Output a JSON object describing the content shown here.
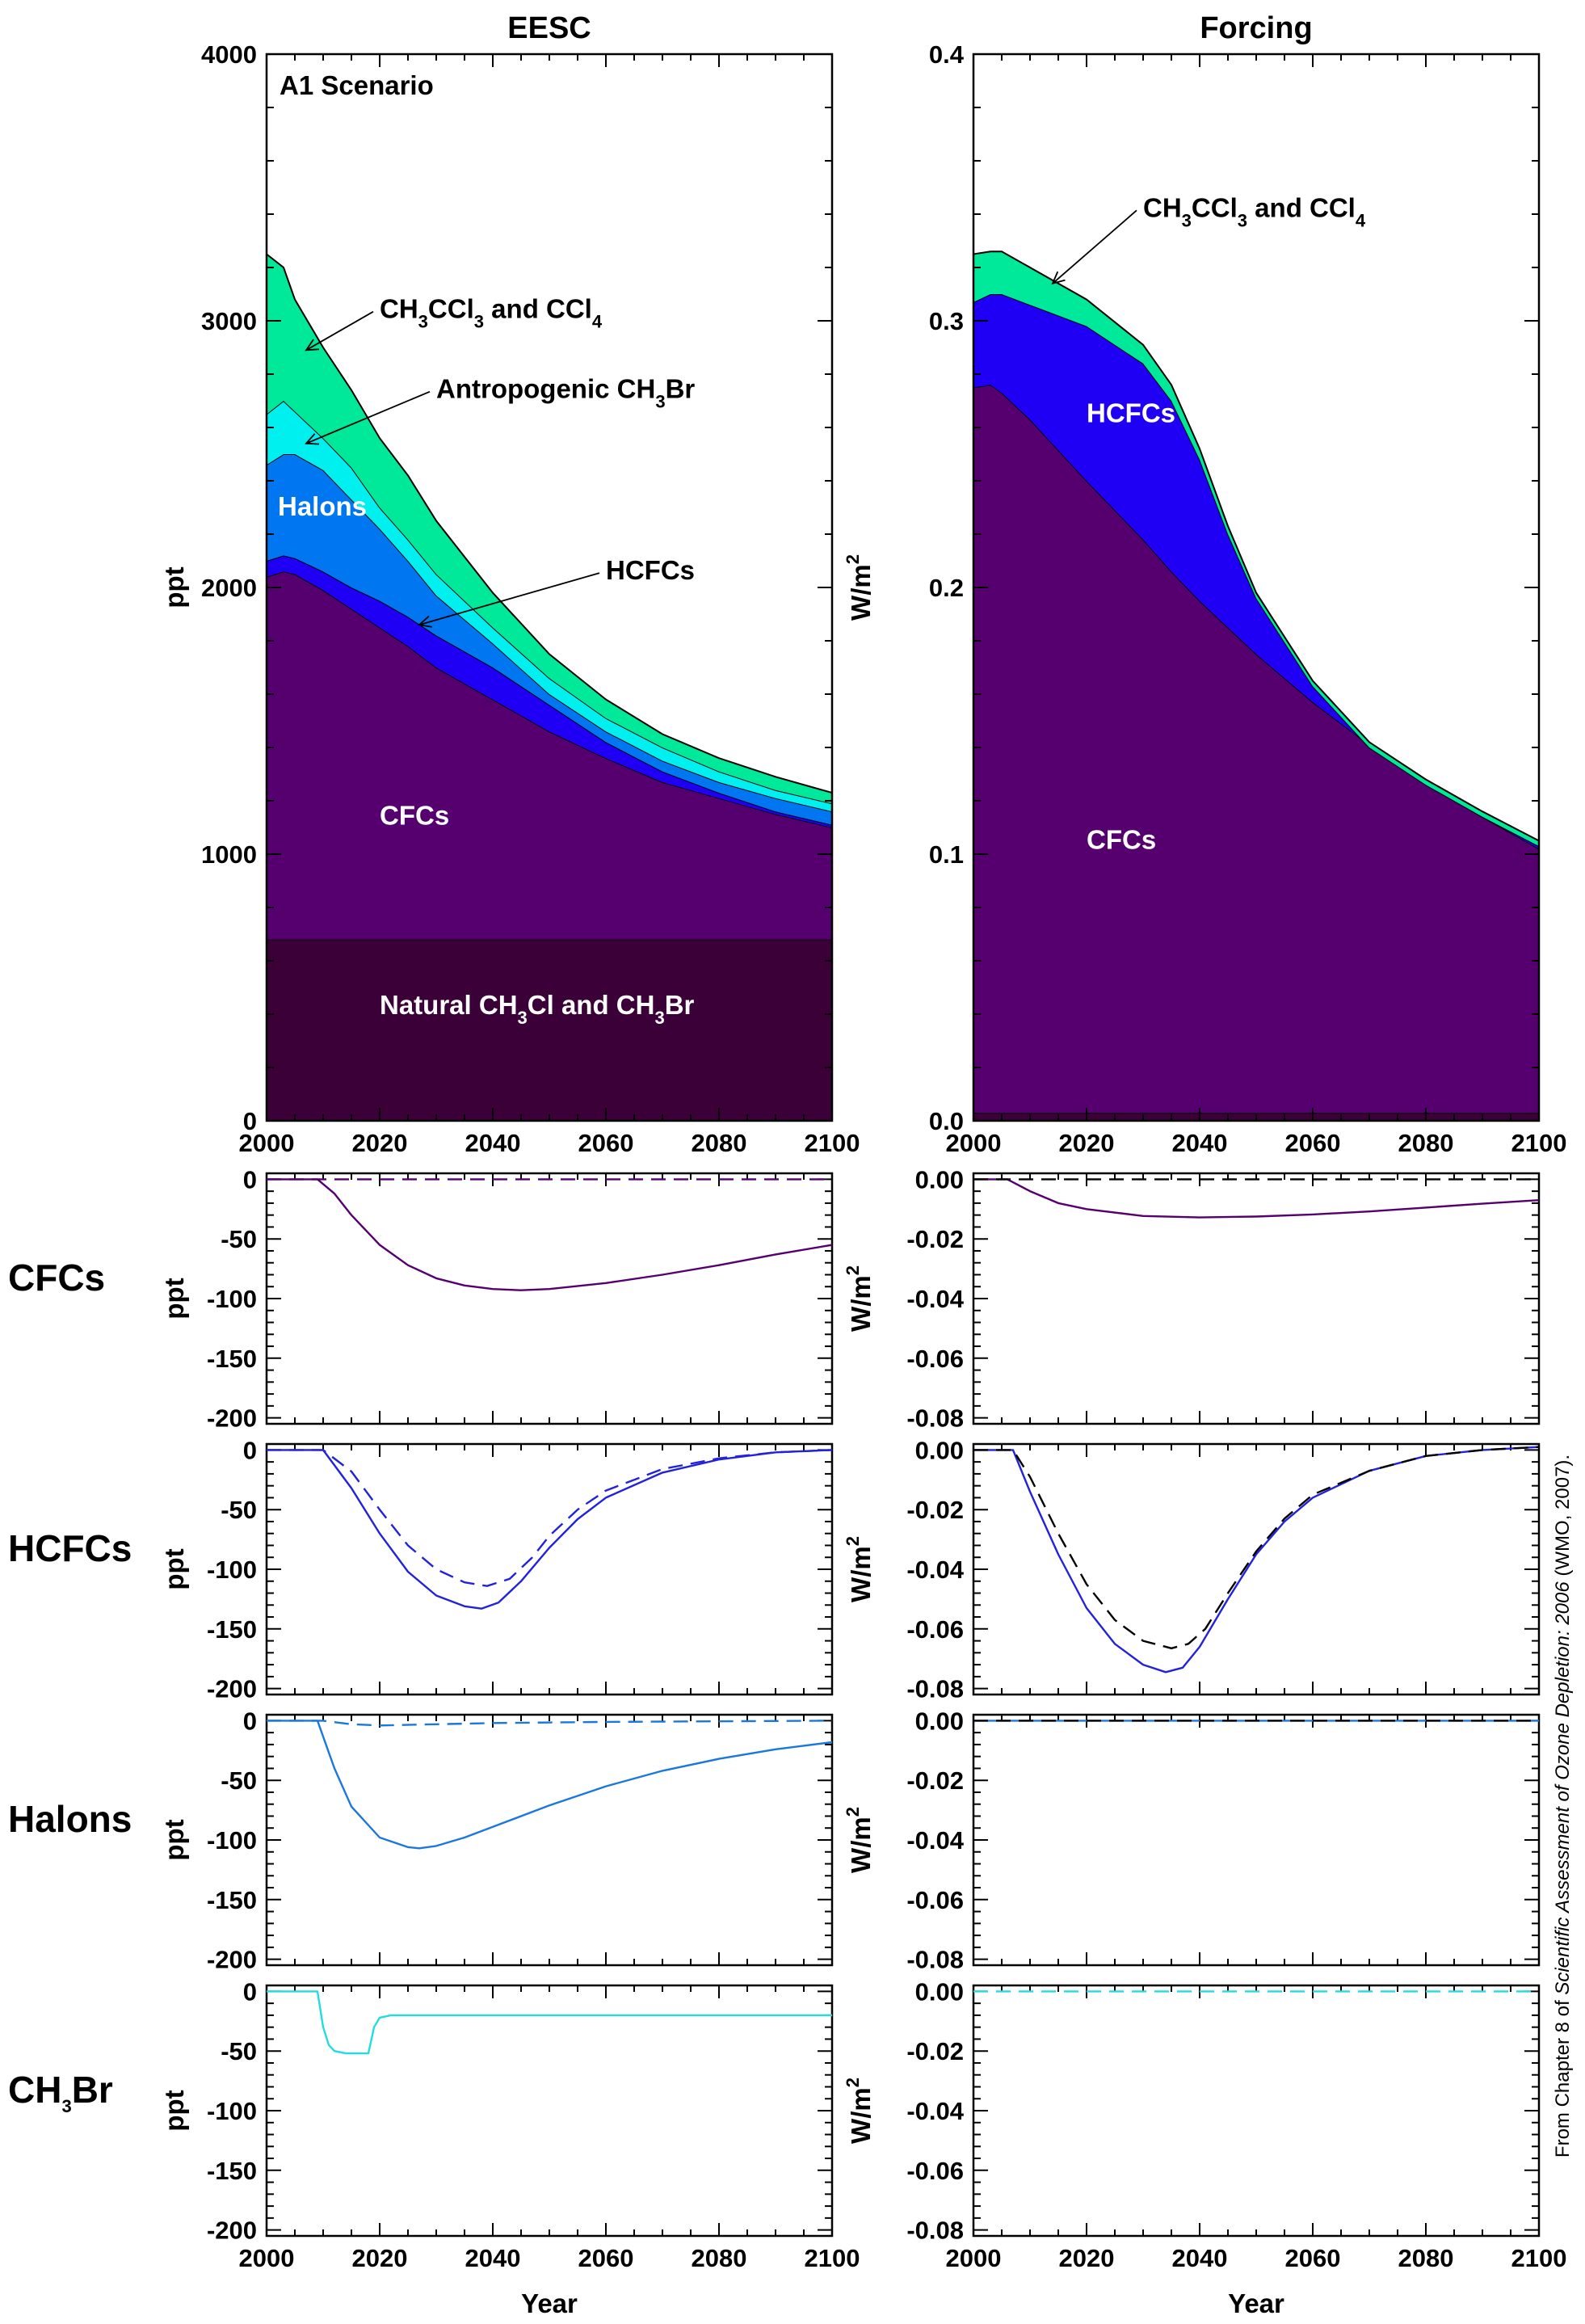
{
  "figure": {
    "col_titles": [
      "EESC",
      "Forcing"
    ],
    "row_labels": [
      "CFCs",
      "HCFCs",
      "Halons",
      "CH3Br"
    ],
    "xlabel": "Year",
    "credit": {
      "pre": "From Chapter 8 of ",
      "italic": "Scientific Assessment of Ozone Depletion: 2006",
      "post": " (WMO, 2007)."
    },
    "colors": {
      "natural": "#3a0037",
      "cfc": "#560070",
      "hcfc": "#1f00f5",
      "halon": "#0077f0",
      "ch3br": "#00f0f0",
      "ch3ccl3": "#00e89a",
      "forcing_base": "#3a0037",
      "cfc_line": "#560070",
      "hcfc_line": "#2222dd",
      "halon_line": "#1a77dd",
      "ch3br_line": "#22dddd",
      "dash": "#000000"
    }
  },
  "chart_data": [
    {
      "type": "area",
      "panel": "eesc-main",
      "title": "EESC",
      "ylabel": "ppt",
      "xlim": [
        2000,
        2100
      ],
      "ylim": [
        0,
        4000
      ],
      "x_ticks": [
        2000,
        2020,
        2040,
        2060,
        2080,
        2100
      ],
      "y_ticks": [
        0,
        1000,
        2000,
        3000,
        4000
      ],
      "y_tick_labels": [
        "0",
        "1000",
        "2000",
        "3000",
        "4000"
      ],
      "scenario_label": "A1 Scenario",
      "x": [
        2000,
        2003,
        2005,
        2010,
        2015,
        2020,
        2025,
        2030,
        2040,
        2050,
        2060,
        2070,
        2080,
        2090,
        2100
      ],
      "stacked_tops": [
        {
          "name": "Natural CH3Cl and CH3Br",
          "values": [
            680,
            680,
            680,
            680,
            680,
            680,
            680,
            680,
            680,
            680,
            680,
            680,
            680,
            680,
            680
          ]
        },
        {
          "name": "CFCs",
          "values": [
            2040,
            2060,
            2050,
            1990,
            1920,
            1850,
            1780,
            1700,
            1580,
            1460,
            1360,
            1270,
            1210,
            1150,
            1100
          ]
        },
        {
          "name": "HCFCs",
          "values": [
            2100,
            2120,
            2110,
            2060,
            2000,
            1950,
            1890,
            1820,
            1700,
            1560,
            1420,
            1310,
            1230,
            1160,
            1110
          ]
        },
        {
          "name": "Halons",
          "values": [
            2460,
            2500,
            2500,
            2440,
            2330,
            2220,
            2100,
            1970,
            1790,
            1600,
            1460,
            1350,
            1270,
            1210,
            1160
          ]
        },
        {
          "name": "Antropogenic CH3Br",
          "values": [
            2650,
            2700,
            2660,
            2560,
            2450,
            2300,
            2180,
            2050,
            1850,
            1660,
            1510,
            1400,
            1310,
            1240,
            1190
          ]
        },
        {
          "name": "CH3CCl3 and CCl4",
          "values": [
            3250,
            3200,
            3080,
            2900,
            2740,
            2560,
            2420,
            2250,
            1980,
            1750,
            1580,
            1450,
            1360,
            1290,
            1230
          ]
        }
      ],
      "annotations": [
        {
          "text": "CH3CCl3 and CCl4",
          "x": 2020,
          "y": 3010,
          "arrow_to": [
            2007,
            2890
          ]
        },
        {
          "text": "Antropogenic CH3Br",
          "x": 2030,
          "y": 2710,
          "arrow_to": [
            2007,
            2540
          ]
        },
        {
          "text": "Halons",
          "x": 2002,
          "y": 2270
        },
        {
          "text": "HCFCs",
          "x": 2060,
          "y": 2030,
          "arrow_to": [
            2027,
            1860
          ]
        },
        {
          "text": "CFCs",
          "x": 2020,
          "y": 1110
        },
        {
          "text": "Natural CH3Cl and CH3Br",
          "x": 2020,
          "y": 400
        }
      ]
    },
    {
      "type": "area",
      "panel": "forcing-main",
      "title": "Forcing",
      "ylabel": "W/m2",
      "xlim": [
        2000,
        2100
      ],
      "ylim": [
        0,
        0.4
      ],
      "x_ticks": [
        2000,
        2020,
        2040,
        2060,
        2080,
        2100
      ],
      "y_ticks": [
        0,
        0.1,
        0.2,
        0.3,
        0.4
      ],
      "y_tick_labels": [
        "0.0",
        "0.1",
        "0.2",
        "0.3",
        "0.4"
      ],
      "x": [
        2000,
        2003,
        2005,
        2010,
        2020,
        2030,
        2035,
        2040,
        2045,
        2050,
        2060,
        2070,
        2080,
        2090,
        2100
      ],
      "stacked_tops": [
        {
          "name": "base",
          "values": [
            0.003,
            0.003,
            0.003,
            0.003,
            0.003,
            0.003,
            0.003,
            0.003,
            0.003,
            0.003,
            0.003,
            0.003,
            0.003,
            0.003,
            0.003
          ]
        },
        {
          "name": "CFCs",
          "values": [
            0.275,
            0.276,
            0.273,
            0.263,
            0.24,
            0.218,
            0.206,
            0.195,
            0.185,
            0.175,
            0.157,
            0.141,
            0.127,
            0.114,
            0.102
          ]
        },
        {
          "name": "HCFCs",
          "values": [
            0.307,
            0.31,
            0.31,
            0.306,
            0.298,
            0.284,
            0.27,
            0.248,
            0.22,
            0.196,
            0.163,
            0.14,
            0.126,
            0.114,
            0.103
          ]
        },
        {
          "name": "CH3CCl3 and CCl4",
          "values": [
            0.325,
            0.326,
            0.326,
            0.32,
            0.308,
            0.291,
            0.276,
            0.252,
            0.223,
            0.198,
            0.165,
            0.142,
            0.128,
            0.116,
            0.105
          ]
        }
      ],
      "annotations": [
        {
          "text": "CH3CCl3 and CCl4",
          "x": 2030,
          "y": 0.339,
          "arrow_to": [
            2014,
            0.314
          ]
        },
        {
          "text": "HCFCs",
          "x": 2020,
          "y": 0.262
        },
        {
          "text": "CFCs",
          "x": 2020,
          "y": 0.102
        }
      ]
    },
    {
      "type": "line",
      "panel": "eesc-cfcs",
      "ylabel": "ppt",
      "xlim": [
        2000,
        2100
      ],
      "ylim": [
        -205,
        5
      ],
      "y_ticks": [
        0,
        -50,
        -100,
        -150,
        -200
      ],
      "y_tick_labels": [
        "0",
        "-50",
        "-100",
        "-150",
        "-200"
      ],
      "series": [
        {
          "style": "solid",
          "color": "#560070",
          "x": [
            2000,
            2009,
            2012,
            2015,
            2020,
            2025,
            2030,
            2035,
            2040,
            2045,
            2050,
            2060,
            2070,
            2080,
            2090,
            2100
          ],
          "values": [
            0,
            0,
            -12,
            -30,
            -55,
            -72,
            -83,
            -89,
            -92,
            -93,
            -92,
            -87,
            -80,
            -72,
            -63,
            -55
          ]
        },
        {
          "style": "dashed",
          "color": "#560070",
          "x": [
            2000,
            2100
          ],
          "values": [
            0,
            0
          ]
        }
      ]
    },
    {
      "type": "line",
      "panel": "forcing-cfcs",
      "ylabel": "W/m2",
      "xlim": [
        2000,
        2100
      ],
      "ylim": [
        -0.082,
        0.002
      ],
      "y_ticks": [
        0,
        -0.02,
        -0.04,
        -0.06,
        -0.08
      ],
      "y_tick_labels": [
        "0.00",
        "-0.02",
        "-0.04",
        "-0.06",
        "-0.08"
      ],
      "series": [
        {
          "style": "solid",
          "color": "#560070",
          "x": [
            2000,
            2006,
            2010,
            2015,
            2020,
            2030,
            2040,
            2050,
            2060,
            2070,
            2080,
            2090,
            2100
          ],
          "values": [
            0,
            0,
            -0.004,
            -0.008,
            -0.01,
            -0.0123,
            -0.0128,
            -0.0125,
            -0.0118,
            -0.0108,
            -0.0095,
            -0.0082,
            -0.007
          ]
        },
        {
          "style": "dashed",
          "color": "#000000",
          "x": [
            2000,
            2100
          ],
          "values": [
            0,
            0
          ]
        }
      ]
    },
    {
      "type": "line",
      "panel": "eesc-hcfcs",
      "ylabel": "ppt",
      "xlim": [
        2000,
        2100
      ],
      "ylim": [
        -205,
        5
      ],
      "y_ticks": [
        0,
        -50,
        -100,
        -150,
        -200
      ],
      "y_tick_labels": [
        "0",
        "-50",
        "-100",
        "-150",
        "-200"
      ],
      "series": [
        {
          "style": "solid",
          "color": "#2222dd",
          "x": [
            2000,
            2010,
            2015,
            2020,
            2025,
            2030,
            2035,
            2038,
            2041,
            2045,
            2050,
            2055,
            2060,
            2070,
            2080,
            2090,
            2100
          ],
          "values": [
            0,
            0,
            -32,
            -70,
            -102,
            -122,
            -131,
            -133,
            -128,
            -110,
            -82,
            -58,
            -40,
            -19,
            -8,
            -2,
            0
          ]
        },
        {
          "style": "dashed",
          "color": "#2222dd",
          "x": [
            2000,
            2010,
            2015,
            2020,
            2025,
            2030,
            2035,
            2039,
            2043,
            2047,
            2050,
            2055,
            2060,
            2070,
            2080,
            2090,
            2100
          ],
          "values": [
            0,
            0,
            -18,
            -50,
            -80,
            -100,
            -111,
            -114,
            -108,
            -90,
            -72,
            -50,
            -34,
            -16,
            -7,
            -2,
            0
          ]
        }
      ]
    },
    {
      "type": "line",
      "panel": "forcing-hcfcs",
      "ylabel": "W/m2",
      "xlim": [
        2000,
        2100
      ],
      "ylim": [
        -0.082,
        0.002
      ],
      "y_ticks": [
        0,
        -0.02,
        -0.04,
        -0.06,
        -0.08
      ],
      "y_tick_labels": [
        "0.00",
        "-0.02",
        "-0.04",
        "-0.06",
        "-0.08"
      ],
      "series": [
        {
          "style": "solid",
          "color": "#2222dd",
          "x": [
            2000,
            2007,
            2010,
            2015,
            2020,
            2025,
            2030,
            2034,
            2037,
            2040,
            2045,
            2050,
            2055,
            2060,
            2070,
            2080,
            2090,
            2100
          ],
          "values": [
            0,
            0,
            -0.014,
            -0.035,
            -0.053,
            -0.065,
            -0.072,
            -0.0745,
            -0.073,
            -0.066,
            -0.05,
            -0.035,
            -0.024,
            -0.016,
            -0.007,
            -0.002,
            0,
            0.001
          ]
        },
        {
          "style": "dashed",
          "color": "#000000",
          "x": [
            2000,
            2007,
            2010,
            2015,
            2020,
            2025,
            2030,
            2035,
            2038,
            2041,
            2045,
            2050,
            2055,
            2060,
            2070,
            2080,
            2090,
            2100
          ],
          "values": [
            0,
            0,
            -0.009,
            -0.028,
            -0.045,
            -0.057,
            -0.064,
            -0.0665,
            -0.065,
            -0.06,
            -0.048,
            -0.034,
            -0.023,
            -0.015,
            -0.007,
            -0.002,
            0,
            0.001
          ]
        }
      ]
    },
    {
      "type": "line",
      "panel": "eesc-halons",
      "ylabel": "ppt",
      "xlim": [
        2000,
        2100
      ],
      "ylim": [
        -205,
        5
      ],
      "y_ticks": [
        0,
        -50,
        -100,
        -150,
        -200
      ],
      "y_tick_labels": [
        "0",
        "-50",
        "-100",
        "-150",
        "-200"
      ],
      "series": [
        {
          "style": "solid",
          "color": "#1a77dd",
          "x": [
            2000,
            2009,
            2012,
            2015,
            2020,
            2025,
            2027,
            2030,
            2035,
            2040,
            2050,
            2060,
            2070,
            2080,
            2090,
            2100
          ],
          "values": [
            0,
            0,
            -40,
            -72,
            -98,
            -106,
            -107,
            -105,
            -98,
            -89,
            -71,
            -55,
            -42,
            -32,
            -24,
            -18
          ]
        },
        {
          "style": "dashed",
          "color": "#1a77dd",
          "x": [
            2000,
            2010,
            2015,
            2020,
            2030,
            2040,
            2060,
            2100
          ],
          "values": [
            0,
            0,
            -3,
            -4,
            -3,
            -2,
            -1,
            0
          ]
        }
      ]
    },
    {
      "type": "line",
      "panel": "forcing-halons",
      "ylabel": "W/m2",
      "xlim": [
        2000,
        2100
      ],
      "ylim": [
        -0.082,
        0.002
      ],
      "y_ticks": [
        0,
        -0.02,
        -0.04,
        -0.06,
        -0.08
      ],
      "y_tick_labels": [
        "0.00",
        "-0.02",
        "-0.04",
        "-0.06",
        "-0.08"
      ],
      "series": [
        {
          "style": "solid",
          "color": "#1a77dd",
          "x": [
            2000,
            2100
          ],
          "values": [
            0,
            0
          ]
        },
        {
          "style": "dashed",
          "color": "#000000",
          "x": [
            2000,
            2100
          ],
          "values": [
            0,
            0
          ]
        }
      ]
    },
    {
      "type": "line",
      "panel": "eesc-ch3br",
      "ylabel": "ppt",
      "xlim": [
        2000,
        2100
      ],
      "ylim": [
        -205,
        5
      ],
      "y_ticks": [
        0,
        -50,
        -100,
        -150,
        -200
      ],
      "y_tick_labels": [
        "0",
        "-50",
        "-100",
        "-150",
        "-200"
      ],
      "series": [
        {
          "style": "solid",
          "color": "#22dddd",
          "x": [
            2000,
            2009,
            2010,
            2011,
            2012,
            2014,
            2018,
            2019,
            2020,
            2022,
            2100
          ],
          "values": [
            0,
            0,
            -30,
            -45,
            -50,
            -52,
            -52,
            -30,
            -22,
            -20,
            -20
          ]
        }
      ]
    },
    {
      "type": "line",
      "panel": "forcing-ch3br",
      "ylabel": "W/m2",
      "xlim": [
        2000,
        2100
      ],
      "ylim": [
        -0.082,
        0.002
      ],
      "y_ticks": [
        0,
        -0.02,
        -0.04,
        -0.06,
        -0.08
      ],
      "y_tick_labels": [
        "0.00",
        "-0.02",
        "-0.04",
        "-0.06",
        "-0.08"
      ],
      "series": [
        {
          "style": "dashed",
          "color": "#22dddd",
          "x": [
            2000,
            2100
          ],
          "values": [
            0,
            0
          ]
        }
      ]
    }
  ]
}
